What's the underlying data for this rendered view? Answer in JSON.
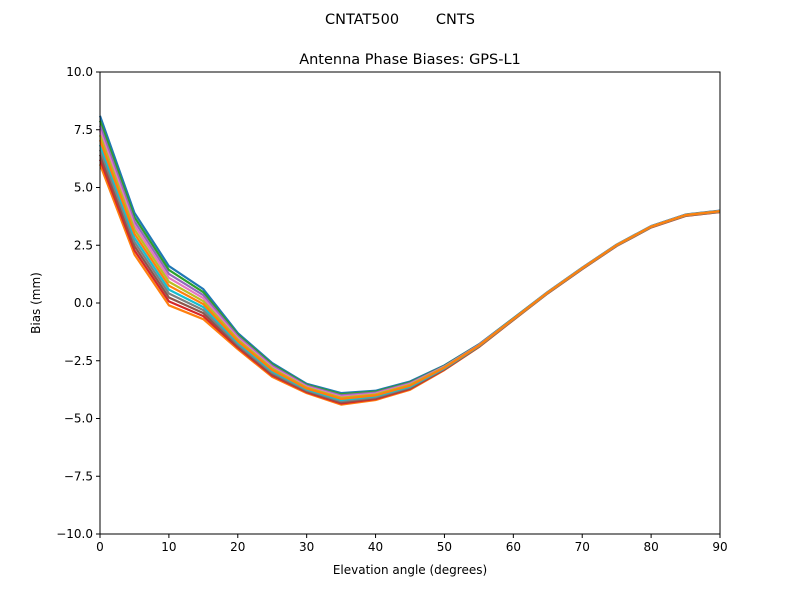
{
  "chart_data": {
    "type": "line",
    "suptitle": "CNTAT500        CNTS",
    "title": "Antenna Phase Biases: GPS-L1",
    "xlabel": "Elevation angle (degrees)",
    "ylabel": "Bias (mm)",
    "xlim": [
      0,
      90
    ],
    "ylim": [
      -10,
      10
    ],
    "xticks": [
      0,
      10,
      20,
      30,
      40,
      50,
      60,
      70,
      80,
      90
    ],
    "xtick_labels": [
      "0",
      "10",
      "20",
      "30",
      "40",
      "50",
      "60",
      "70",
      "80",
      "90"
    ],
    "yticks": [
      -10,
      -7.5,
      -5,
      -2.5,
      0,
      2.5,
      5,
      7.5,
      10
    ],
    "ytick_labels": [
      "−10.0",
      "−7.5",
      "−5.0",
      "−2.5",
      "0.0",
      "2.5",
      "5.0",
      "7.5",
      "10.0"
    ],
    "grid": false,
    "x": [
      0,
      5,
      10,
      15,
      20,
      25,
      30,
      35,
      40,
      45,
      50,
      55,
      60,
      65,
      70,
      75,
      80,
      85,
      90
    ],
    "colors": [
      "#1f77b4",
      "#ff7f0e",
      "#2ca02c",
      "#d62728",
      "#9467bd",
      "#8c564b",
      "#e377c2",
      "#7f7f7f",
      "#bcbd22",
      "#17becf",
      "#ff7f0e"
    ],
    "series": [
      {
        "values": [
          8.1,
          3.9,
          1.6,
          0.6,
          -1.3,
          -2.6,
          -3.5,
          -3.9,
          -3.8,
          -3.4,
          -2.7,
          -1.79,
          -0.66,
          0.48,
          1.53,
          2.53,
          3.33,
          3.83,
          4.0
        ]
      },
      {
        "values": [
          6.0,
          2.1,
          -0.1,
          -0.7,
          -2.0,
          -3.2,
          -3.9,
          -4.4,
          -4.2,
          -3.76,
          -2.9,
          -1.91,
          -0.74,
          0.42,
          1.47,
          2.47,
          3.27,
          3.77,
          3.94
        ]
      },
      {
        "values": [
          7.89,
          3.72,
          1.43,
          0.47,
          -1.37,
          -2.66,
          -3.54,
          -3.95,
          -3.84,
          -3.44,
          -2.72,
          -1.8,
          -0.67,
          0.47,
          1.52,
          2.52,
          3.32,
          3.82,
          3.99
        ]
      },
      {
        "values": [
          6.21,
          2.28,
          0.07,
          -0.57,
          -1.93,
          -3.14,
          -3.86,
          -4.35,
          -4.16,
          -3.72,
          -2.88,
          -1.9,
          -0.73,
          0.42,
          1.47,
          2.47,
          3.27,
          3.77,
          3.94
        ]
      },
      {
        "values": [
          7.68,
          3.54,
          1.26,
          0.34,
          -1.44,
          -2.72,
          -3.58,
          -4.0,
          -3.88,
          -3.47,
          -2.74,
          -1.81,
          -0.68,
          0.47,
          1.52,
          2.52,
          3.32,
          3.82,
          3.99
        ]
      },
      {
        "values": [
          6.42,
          2.46,
          0.24,
          -0.44,
          -1.86,
          -3.08,
          -3.82,
          -4.3,
          -4.12,
          -3.69,
          -2.86,
          -1.89,
          -0.72,
          0.43,
          1.48,
          2.48,
          3.28,
          3.78,
          3.95
        ]
      },
      {
        "values": [
          7.47,
          3.36,
          1.09,
          0.21,
          -1.51,
          -2.78,
          -3.62,
          -4.05,
          -3.92,
          -3.51,
          -2.76,
          -1.83,
          -0.69,
          0.46,
          1.51,
          2.51,
          3.31,
          3.81,
          3.98
        ]
      },
      {
        "values": [
          6.63,
          2.64,
          0.41,
          -0.31,
          -1.79,
          -3.02,
          -3.78,
          -4.25,
          -4.08,
          -3.65,
          -2.84,
          -1.87,
          -0.71,
          0.44,
          1.49,
          2.49,
          3.29,
          3.79,
          3.96
        ]
      },
      {
        "values": [
          7.26,
          3.18,
          0.92,
          0.08,
          -1.58,
          -2.84,
          -3.66,
          -4.1,
          -3.96,
          -3.54,
          -2.78,
          -1.84,
          -0.69,
          0.46,
          1.51,
          2.51,
          3.31,
          3.81,
          3.98
        ]
      },
      {
        "values": [
          6.84,
          2.82,
          0.58,
          -0.18,
          -1.72,
          -2.96,
          -3.74,
          -4.2,
          -4.04,
          -3.62,
          -2.82,
          -1.86,
          -0.71,
          0.44,
          1.49,
          2.49,
          3.29,
          3.79,
          3.96
        ]
      },
      {
        "values": [
          7.05,
          3.0,
          0.75,
          -0.05,
          -1.65,
          -2.9,
          -3.7,
          -4.15,
          -4.0,
          -3.58,
          -2.8,
          -1.85,
          -0.7,
          0.45,
          1.5,
          2.5,
          3.3,
          3.8,
          3.97
        ]
      }
    ]
  }
}
